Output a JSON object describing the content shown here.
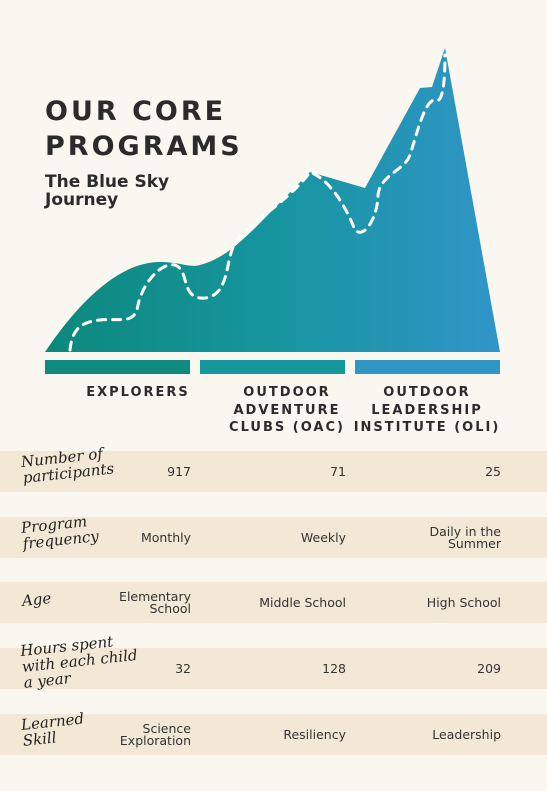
{
  "header": {
    "title": "OUR CORE\nPROGRAMS",
    "subtitle": "The Blue Sky\nJourney"
  },
  "columns": [
    "EXPLORERS",
    "OUTDOOR\nADVENTURE\nCLUBS (OAC)",
    "OUTDOOR\nLEADERSHIP\nINSTITUTE (OLI)"
  ],
  "table": {
    "rows": [
      {
        "label": "Number of\nparticipants",
        "cells": [
          "917",
          "71",
          "25"
        ]
      },
      {
        "label": "Program\nfrequency",
        "cells": [
          "Monthly",
          "Weekly",
          "Daily in the\nSummer"
        ]
      },
      {
        "label": "Age",
        "cells": [
          "Elementary\nSchool",
          "Middle School",
          "High School"
        ]
      },
      {
        "label": "Hours spent\nwith each child\na year",
        "cells": [
          "32",
          "128",
          "209"
        ]
      },
      {
        "label": "Learned\nSkill",
        "cells": [
          "Science\nExploration",
          "Resiliency",
          "Leadership"
        ]
      }
    ]
  }
}
